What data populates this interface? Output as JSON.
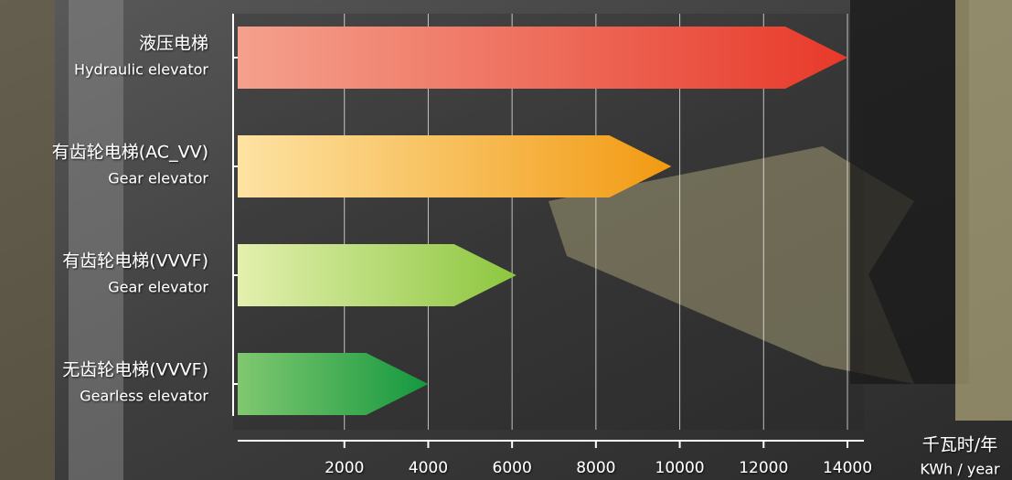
{
  "chart_data": {
    "type": "arrow-bar",
    "categories": [
      "液压电梯",
      "有齿轮电梯(AC_VV)",
      "有齿轮电梯(VVVF)",
      "无齿轮电梯(VVVF)"
    ],
    "category_subtitles": [
      "Hydraulic elevator",
      "Gear elevator",
      "Gear elevator",
      "Gearless elevator"
    ],
    "values": [
      14000,
      9800,
      6100,
      4000
    ],
    "start_colors": [
      "#f4a18d",
      "#fde3a3",
      "#e3f0ae",
      "#80c870"
    ],
    "colors": [
      "#e8392a",
      "#f29a12",
      "#8cc63f",
      "#15983f"
    ],
    "xlim": [
      0,
      14000
    ],
    "xticks": [
      2000,
      4000,
      6000,
      8000,
      10000,
      12000,
      14000
    ],
    "grid": true,
    "unit_label": "千瓦时/年",
    "unit_label_en": "KWh / year"
  }
}
